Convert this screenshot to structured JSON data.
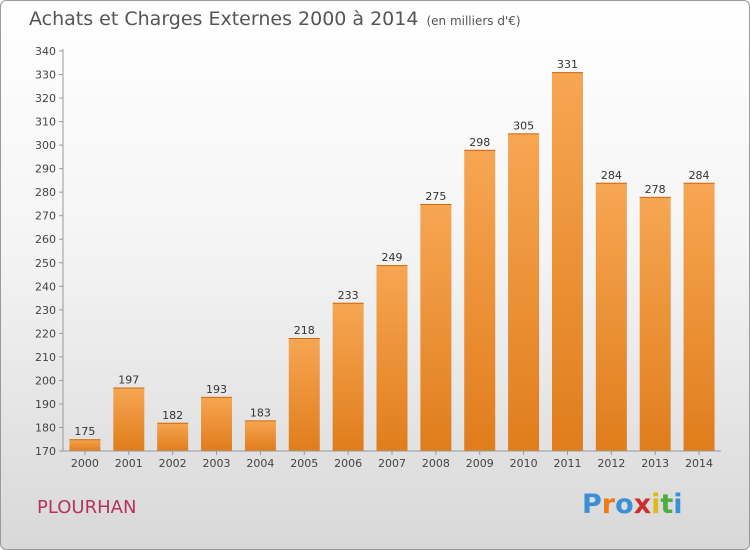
{
  "header": {
    "title": "Achats et Charges Externes 2000 à 2014",
    "unit": "(en milliers d'€)"
  },
  "footer": {
    "commune": "PLOURHAN",
    "logo_text": "Proxiti",
    "logo_colors": [
      "#3b8fd6",
      "#f07a1a",
      "#3b8fd6",
      "#cc2d2d",
      "#e0b81a",
      "#4cae3c",
      "#3b8fd6"
    ]
  },
  "colors": {
    "bar_top": "#f7a653",
    "bar_bottom": "#e07d1c",
    "title": "#555555",
    "commune": "#b8315f"
  },
  "chart_data": {
    "type": "bar",
    "categories": [
      "2000",
      "2001",
      "2002",
      "2003",
      "2004",
      "2005",
      "2006",
      "2007",
      "2008",
      "2009",
      "2010",
      "2011",
      "2012",
      "2013",
      "2014"
    ],
    "values": [
      175,
      197,
      182,
      193,
      183,
      218,
      233,
      249,
      275,
      298,
      305,
      331,
      284,
      278,
      284
    ],
    "ylim": [
      170,
      340
    ],
    "ytick_step": 10,
    "grid": false,
    "data_labels": true
  }
}
